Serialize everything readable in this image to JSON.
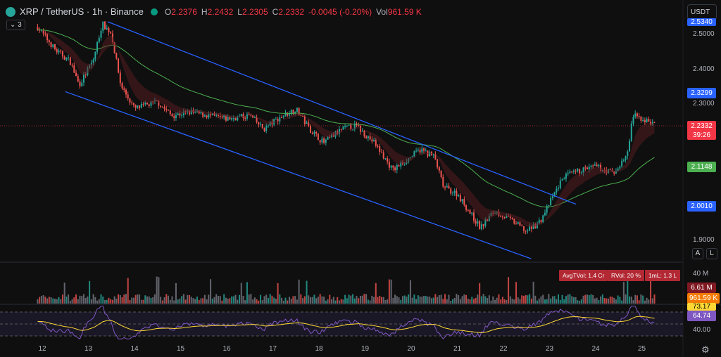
{
  "header": {
    "symbol": "XRP / TetherUS · 1h · Binance",
    "open_label": "O",
    "open": "2.2376",
    "high_label": "H",
    "high": "2.2432",
    "low_label": "L",
    "low": "2.2305",
    "close_label": "C",
    "close": "2.2332",
    "change": "-0.0045 (-0.20%)",
    "vol_label": "Vol",
    "vol": "961.59 K",
    "indicator_count": "3"
  },
  "currency": "USDT",
  "price_axis": {
    "ticks": [
      "2.5000",
      "2.4000",
      "2.3000",
      "1.9000"
    ],
    "tags": [
      {
        "text": "2.5340",
        "color": "#2962ff"
      },
      {
        "text": "2.3299",
        "color": "#2962ff"
      },
      {
        "text": "2.2332",
        "sub": "39:26",
        "color": "#f23645"
      },
      {
        "text": "2.1148",
        "color": "#4caf50"
      },
      {
        "text": "2.0010",
        "color": "#2962ff"
      }
    ]
  },
  "scale_buttons": {
    "auto": "A",
    "log": "L"
  },
  "volume_panel": {
    "axis_label": "40 M",
    "stats": [
      "AvgTVol: 1.4 Cr",
      "RVol: 20 %",
      "1mL: 1.3 L"
    ],
    "tags": [
      {
        "text": "6.61 M",
        "color": "#801922"
      },
      {
        "text": "961.59 K",
        "color": "#f57c00"
      }
    ]
  },
  "rsi_panel": {
    "axis_label": "40.00",
    "tags": [
      {
        "text": "73.17",
        "color": "#fdd835"
      },
      {
        "text": "64.74",
        "color": "#7e57c2"
      }
    ]
  },
  "time_axis": {
    "labels": [
      "12",
      "13",
      "14",
      "15",
      "16",
      "17",
      "18",
      "19",
      "20",
      "21",
      "22",
      "23",
      "24",
      "25"
    ]
  },
  "colors": {
    "up": "#26a69a",
    "down": "#ef5350",
    "channel": "#2962ff",
    "ma": "#4caf50",
    "rsi": "#7e57c2",
    "rsi_ma": "#fdd835"
  },
  "chart_data": {
    "type": "candlestick",
    "interval": "1h",
    "approx_price_path": [
      [
        11.9,
        2.52
      ],
      [
        12.3,
        2.45
      ],
      [
        12.6,
        2.42
      ],
      [
        12.8,
        2.35
      ],
      [
        13.1,
        2.42
      ],
      [
        13.3,
        2.53
      ],
      [
        13.5,
        2.5
      ],
      [
        13.7,
        2.35
      ],
      [
        14.0,
        2.28
      ],
      [
        14.5,
        2.3
      ],
      [
        14.8,
        2.26
      ],
      [
        15.2,
        2.27
      ],
      [
        15.6,
        2.26
      ],
      [
        16.0,
        2.25
      ],
      [
        16.5,
        2.26
      ],
      [
        16.8,
        2.22
      ],
      [
        17.1,
        2.25
      ],
      [
        17.5,
        2.28
      ],
      [
        17.8,
        2.22
      ],
      [
        18.1,
        2.18
      ],
      [
        18.5,
        2.22
      ],
      [
        18.8,
        2.23
      ],
      [
        19.2,
        2.18
      ],
      [
        19.6,
        2.1
      ],
      [
        19.8,
        2.12
      ],
      [
        20.2,
        2.16
      ],
      [
        20.5,
        2.14
      ],
      [
        20.7,
        2.05
      ],
      [
        21.0,
        2.03
      ],
      [
        21.4,
        1.95
      ],
      [
        21.5,
        1.93
      ],
      [
        21.8,
        1.98
      ],
      [
        22.2,
        1.95
      ],
      [
        22.5,
        1.92
      ],
      [
        22.8,
        1.95
      ],
      [
        23.1,
        2.03
      ],
      [
        23.3,
        2.08
      ],
      [
        23.7,
        2.1
      ],
      [
        24.0,
        2.11
      ],
      [
        24.4,
        2.09
      ],
      [
        24.7,
        2.15
      ],
      [
        24.8,
        2.26
      ],
      [
        25.0,
        2.25
      ],
      [
        25.3,
        2.233
      ]
    ],
    "channel": {
      "upper": [
        [
          13.42,
          2.535
        ],
        [
          23.57,
          2.0
        ]
      ],
      "lower": [
        [
          12.5,
          2.33
        ],
        [
          22.6,
          1.84
        ]
      ]
    },
    "ylim": [
      1.86,
      2.56
    ]
  }
}
